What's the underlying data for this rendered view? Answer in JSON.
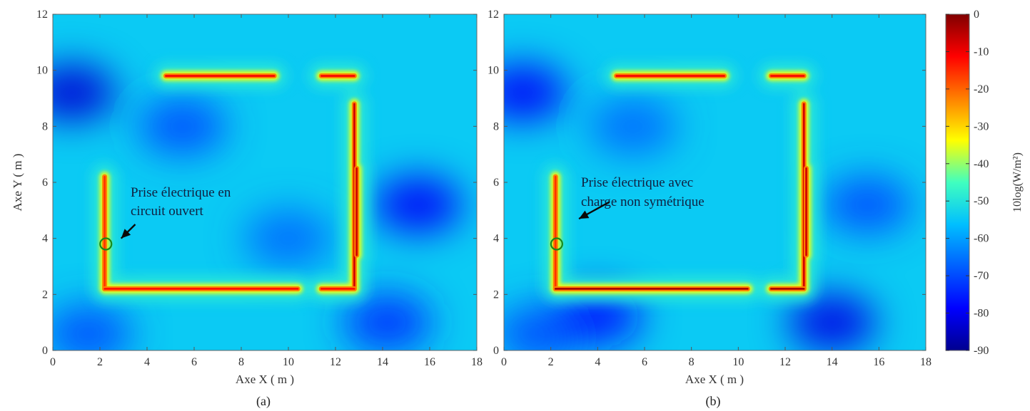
{
  "chart_data": [
    {
      "type": "heatmap",
      "panel": "(a)",
      "xlabel": "Axe X ( m )",
      "ylabel": "Axe Y ( m )",
      "xlim": [
        0,
        18
      ],
      "ylim": [
        0,
        12
      ],
      "xticks": [
        "0",
        "2",
        "4",
        "6",
        "8",
        "10",
        "12",
        "14",
        "16",
        "18"
      ],
      "yticks": [
        "0",
        "2",
        "4",
        "6",
        "8",
        "10",
        "12"
      ],
      "annotation": [
        "Prise électrique en",
        "circuit ouvert"
      ],
      "socket": {
        "x": 2.25,
        "y": 3.8
      },
      "arrow": {
        "from": [
          3.5,
          4.5
        ],
        "to": [
          2.9,
          4.0
        ]
      },
      "background_level_db": -62,
      "low_field_regions": [
        {
          "x": 0.8,
          "y": 9.2,
          "db": -82
        },
        {
          "x": 5.5,
          "y": 8.0,
          "db": -72
        },
        {
          "x": 15.5,
          "y": 5.2,
          "db": -78
        },
        {
          "x": 1.5,
          "y": 0.6,
          "db": -72
        },
        {
          "x": 14.2,
          "y": 1.0,
          "db": -74
        },
        {
          "x": 10.0,
          "y": 4.0,
          "db": -70
        }
      ],
      "cables": [
        {
          "segments": [
            [
              [
                4.8,
                9.8
              ],
              [
                9.4,
                9.8
              ]
            ],
            [
              [
                11.4,
                9.8
              ],
              [
                12.8,
                9.8
              ]
            ]
          ],
          "db": -12
        },
        {
          "segments": [
            [
              [
                12.8,
                8.8
              ],
              [
                12.8,
                2.2
              ]
            ],
            [
              [
                12.9,
                6.5
              ],
              [
                12.9,
                3.4
              ]
            ]
          ],
          "db": -8
        },
        {
          "segments": [
            [
              [
                2.2,
                6.2
              ],
              [
                2.2,
                2.2
              ]
            ]
          ],
          "db": -18
        },
        {
          "segments": [
            [
              [
                2.2,
                2.2
              ],
              [
                10.4,
                2.2
              ]
            ],
            [
              [
                11.4,
                2.2
              ],
              [
                12.8,
                2.2
              ]
            ]
          ],
          "db": -14
        }
      ]
    },
    {
      "type": "heatmap",
      "panel": "(b)",
      "xlabel": "Axe X ( m )",
      "ylabel": "",
      "xlim": [
        0,
        18
      ],
      "ylim": [
        0,
        12
      ],
      "xticks": [
        "0",
        "2",
        "4",
        "6",
        "8",
        "10",
        "12",
        "14",
        "16",
        "18"
      ],
      "yticks": [
        "0",
        "2",
        "4",
        "6",
        "8",
        "10",
        "12"
      ],
      "annotation": [
        "Prise électrique avec",
        "charge  non symétrique"
      ],
      "socket": {
        "x": 2.25,
        "y": 3.8
      },
      "arrow": {
        "from": [
          4.5,
          5.3
        ],
        "to": [
          3.2,
          4.7
        ]
      },
      "background_level_db": -62,
      "low_field_regions": [
        {
          "x": 0.8,
          "y": 9.2,
          "db": -78
        },
        {
          "x": 5.5,
          "y": 8.0,
          "db": -70
        },
        {
          "x": 15.5,
          "y": 5.2,
          "db": -72
        },
        {
          "x": 1.5,
          "y": 0.6,
          "db": -72
        },
        {
          "x": 14.0,
          "y": 1.0,
          "db": -80
        },
        {
          "x": 4.0,
          "y": 1.2,
          "db": -76
        }
      ],
      "cables": [
        {
          "segments": [
            [
              [
                4.8,
                9.8
              ],
              [
                9.4,
                9.8
              ]
            ],
            [
              [
                11.4,
                9.8
              ],
              [
                12.8,
                9.8
              ]
            ]
          ],
          "db": -12
        },
        {
          "segments": [
            [
              [
                12.8,
                8.8
              ],
              [
                12.8,
                2.2
              ]
            ],
            [
              [
                12.9,
                6.5
              ],
              [
                12.9,
                3.4
              ]
            ]
          ],
          "db": -8
        },
        {
          "segments": [
            [
              [
                2.2,
                6.2
              ],
              [
                2.2,
                2.2
              ]
            ]
          ],
          "db": -18
        },
        {
          "segments": [
            [
              [
                2.2,
                2.2
              ],
              [
                10.4,
                2.2
              ]
            ],
            [
              [
                11.4,
                2.2
              ],
              [
                12.8,
                2.2
              ]
            ]
          ],
          "db": -4
        }
      ]
    }
  ],
  "colorbar": {
    "label": "10log(W/m²)",
    "min": -90,
    "max": 0,
    "ticks": [
      "0",
      "-10",
      "-20",
      "-30",
      "-40",
      "-50",
      "-60",
      "-70",
      "-80",
      "-90"
    ],
    "colormap": [
      "#00008f",
      "#0000ff",
      "#00bfff",
      "#40ffbf",
      "#ffff00",
      "#ff8000",
      "#ff0000",
      "#800000"
    ]
  }
}
